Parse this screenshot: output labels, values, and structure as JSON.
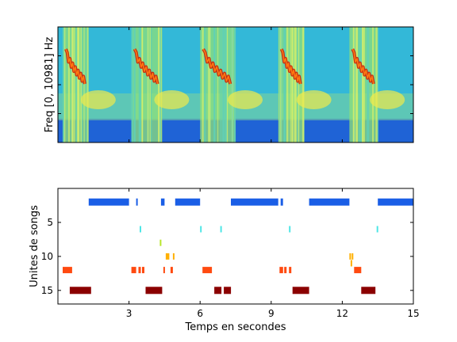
{
  "chart_data": [
    {
      "type": "heatmap",
      "title": "",
      "xlabel": "",
      "ylabel": "Freq [0, 10981] Hz",
      "xlim": [
        0,
        15
      ],
      "colormap": "jet",
      "description_of_signal": "spectrogram",
      "song_bouts_seconds": [
        [
          0.2,
          1.3
        ],
        [
          3.1,
          4.4
        ],
        [
          6.0,
          7.5
        ],
        [
          9.3,
          10.4
        ],
        [
          12.3,
          13.5
        ]
      ]
    },
    {
      "type": "scatter",
      "title": "",
      "xlabel": "Temps en secondes",
      "ylabel": "Unites de songs",
      "xlim": [
        0,
        15
      ],
      "ylim": [
        17,
        0
      ],
      "xticks": [
        "3",
        "6",
        "9",
        "12",
        "15"
      ],
      "yticks": [
        "5",
        "10",
        "15"
      ],
      "series": [
        {
          "unit": 2,
          "color": "#1a5ee6",
          "segments": [
            [
              1.3,
              3.0
            ],
            [
              3.3,
              3.35
            ],
            [
              4.35,
              4.5
            ],
            [
              4.95,
              6.0
            ],
            [
              7.3,
              9.3
            ],
            [
              9.4,
              9.5
            ],
            [
              10.6,
              12.3
            ],
            [
              13.5,
              15.0
            ]
          ]
        },
        {
          "unit": 6,
          "color": "#4ee6e6",
          "segments": [
            [
              3.45,
              3.5
            ],
            [
              6.0,
              6.05
            ],
            [
              6.85,
              6.9
            ],
            [
              9.75,
              9.8
            ],
            [
              13.45,
              13.5
            ]
          ]
        },
        {
          "unit": 8,
          "color": "#b8e62a",
          "segments": [
            [
              4.3,
              4.35
            ]
          ]
        },
        {
          "unit": 10,
          "color": "#ffb000",
          "segments": [
            [
              4.55,
              4.7
            ],
            [
              4.85,
              4.9
            ],
            [
              12.3,
              12.35
            ],
            [
              12.4,
              12.45
            ]
          ]
        },
        {
          "unit": 11,
          "color": "#ffb000",
          "segments": [
            [
              12.35,
              12.4
            ]
          ]
        },
        {
          "unit": 12,
          "color": "#ff4a10",
          "segments": [
            [
              0.2,
              0.6
            ],
            [
              3.1,
              3.3
            ],
            [
              3.4,
              3.5
            ],
            [
              3.55,
              3.65
            ],
            [
              4.45,
              4.5
            ],
            [
              4.75,
              4.85
            ],
            [
              6.1,
              6.5
            ],
            [
              9.35,
              9.5
            ],
            [
              9.55,
              9.65
            ],
            [
              9.75,
              9.85
            ],
            [
              12.5,
              12.8
            ]
          ]
        },
        {
          "unit": 15,
          "color": "#8b0000",
          "segments": [
            [
              0.5,
              1.4
            ],
            [
              3.7,
              4.4
            ],
            [
              6.6,
              6.9
            ],
            [
              7.0,
              7.3
            ],
            [
              9.9,
              10.6
            ],
            [
              12.8,
              13.4
            ]
          ]
        }
      ]
    }
  ]
}
